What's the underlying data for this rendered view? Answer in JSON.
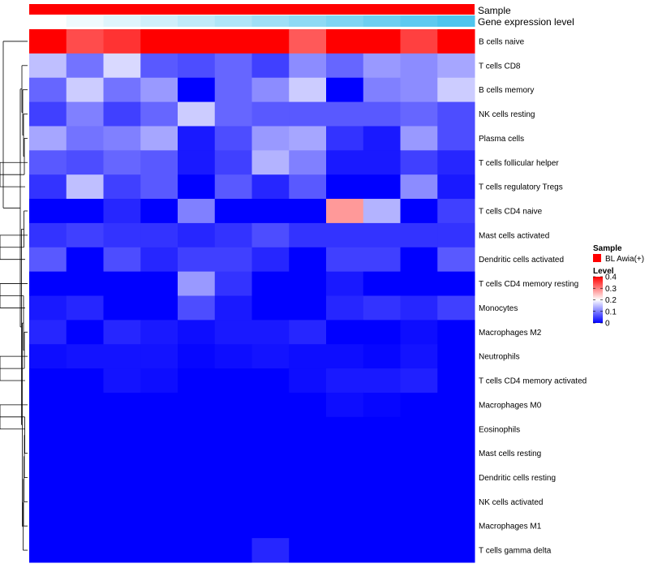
{
  "chart_data": {
    "type": "heatmap",
    "title": "",
    "xlabel": "",
    "ylabel": "",
    "rows": [
      "B cells naive",
      "T cells CD8",
      "B cells memory",
      "NK cells resting",
      "Plasma cells",
      "T cells follicular helper",
      "T cells regulatory  Tregs",
      "T cells CD4 naive",
      "Mast cells activated",
      "Dendritic cells activated",
      "T cells CD4 memory resting",
      "Monocytes",
      "Macrophages M2",
      "Neutrophils",
      "T cells CD4 memory activated",
      "Macrophages M0",
      "Eosinophils",
      "Mast cells resting",
      "Dendritic cells resting",
      "NK cells activated",
      "Macrophages M1",
      "T cells gamma delta"
    ],
    "columns": 12,
    "values": [
      [
        0.4,
        0.34,
        0.36,
        0.4,
        0.44,
        0.44,
        0.4,
        0.33,
        0.42,
        0.44,
        0.35,
        0.4
      ],
      [
        0.15,
        0.09,
        0.17,
        0.07,
        0.06,
        0.08,
        0.05,
        0.11,
        0.08,
        0.12,
        0.11,
        0.13
      ],
      [
        0.08,
        0.16,
        0.09,
        0.12,
        0.0,
        0.08,
        0.11,
        0.16,
        0.0,
        0.1,
        0.11,
        0.16
      ],
      [
        0.05,
        0.1,
        0.05,
        0.08,
        0.16,
        0.08,
        0.07,
        0.07,
        0.07,
        0.07,
        0.08,
        0.06
      ],
      [
        0.13,
        0.09,
        0.1,
        0.13,
        0.02,
        0.06,
        0.12,
        0.13,
        0.04,
        0.02,
        0.12,
        0.06
      ],
      [
        0.07,
        0.06,
        0.08,
        0.07,
        0.02,
        0.05,
        0.14,
        0.1,
        0.02,
        0.02,
        0.05,
        0.03
      ],
      [
        0.04,
        0.15,
        0.05,
        0.07,
        0.0,
        0.07,
        0.03,
        0.07,
        0.0,
        0.0,
        0.11,
        0.02
      ],
      [
        0.0,
        0.0,
        0.03,
        0.0,
        0.1,
        0.0,
        0.0,
        0.0,
        0.28,
        0.14,
        0.0,
        0.05
      ],
      [
        0.04,
        0.05,
        0.04,
        0.04,
        0.03,
        0.04,
        0.06,
        0.04,
        0.04,
        0.04,
        0.04,
        0.04
      ],
      [
        0.07,
        0.0,
        0.06,
        0.03,
        0.05,
        0.05,
        0.03,
        0.0,
        0.05,
        0.05,
        0.0,
        0.07
      ],
      [
        0.0,
        0.0,
        0.0,
        0.0,
        0.12,
        0.04,
        0.0,
        0.0,
        0.02,
        0.0,
        0.0,
        0.0
      ],
      [
        0.02,
        0.03,
        0.0,
        0.0,
        0.06,
        0.02,
        0.0,
        0.0,
        0.03,
        0.04,
        0.03,
        0.05
      ],
      [
        0.03,
        0.0,
        0.03,
        0.02,
        0.01,
        0.02,
        0.02,
        0.03,
        0.0,
        0.0,
        0.01,
        0.0
      ],
      [
        0.01,
        0.015,
        0.015,
        0.015,
        0.005,
        0.01,
        0.015,
        0.01,
        0.01,
        0.005,
        0.015,
        0.0
      ],
      [
        0.0,
        0.0,
        0.015,
        0.01,
        0.0,
        0.0,
        0.0,
        0.01,
        0.02,
        0.02,
        0.025,
        0.0
      ],
      [
        0.0,
        0.0,
        0.0,
        0.0,
        0.0,
        0.0,
        0.0,
        0.0,
        0.01,
        0.005,
        0.0,
        0.0
      ],
      [
        0.0,
        0.0,
        0.0,
        0.0,
        0.0,
        0.0,
        0.0,
        0.0,
        0.0,
        0.0,
        0.0,
        0.0
      ],
      [
        0.0,
        0.0,
        0.0,
        0.0,
        0.0,
        0.0,
        0.0,
        0.0,
        0.0,
        0.0,
        0.0,
        0.0
      ],
      [
        0.0,
        0.0,
        0.0,
        0.0,
        0.0,
        0.0,
        0.0,
        0.0,
        0.0,
        0.0,
        0.0,
        0.0
      ],
      [
        0.0,
        0.0,
        0.0,
        0.0,
        0.0,
        0.0,
        0.0,
        0.0,
        0.0,
        0.0,
        0.0,
        0.0
      ],
      [
        0.0,
        0.0,
        0.0,
        0.0,
        0.0,
        0.0,
        0.0,
        0.0,
        0.0,
        0.0,
        0.0,
        0.0
      ],
      [
        0.0,
        0.0,
        0.0,
        0.0,
        0.0,
        0.0,
        0.03,
        0.0,
        0.0,
        0.0,
        0.0,
        0.0
      ]
    ],
    "color_scale": {
      "min": 0,
      "mid": 0.2,
      "max": 0.4,
      "low_color": "#0000ff",
      "mid_color": "#ffffff",
      "high_color": "#ff0000"
    },
    "annotations": {
      "sample": {
        "label": "Sample",
        "color": "#ff0000"
      },
      "gene_expression": {
        "label": "Gene expression level",
        "values": [
          0.0,
          0.09,
          0.18,
          0.27,
          0.36,
          0.45,
          0.55,
          0.64,
          0.73,
          0.82,
          0.91,
          1.0
        ],
        "low_color": "#ffffff",
        "high_color": "#4ec5ee"
      }
    },
    "legend": {
      "placement": "right",
      "sample_title": "Sample",
      "sample_entry": "BL Awia(+)",
      "level_title": "Level",
      "level_ticks": [
        "0.4",
        "0.3",
        "0.2",
        "0.1",
        "0"
      ],
      "level_tick_values": [
        0.4,
        0.3,
        0.2,
        0.1,
        0
      ]
    },
    "row_dendrogram": true,
    "grid": false
  }
}
